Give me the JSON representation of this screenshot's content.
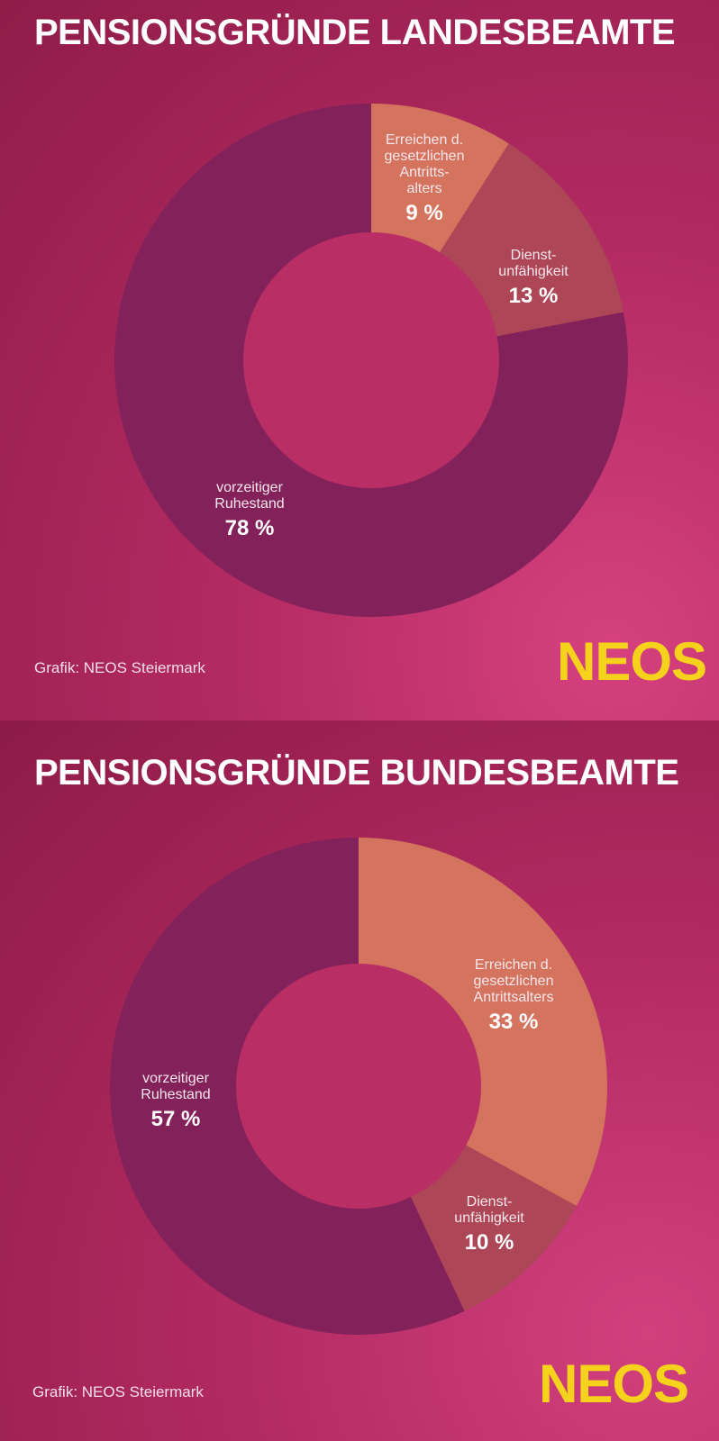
{
  "chart_data": [
    {
      "type": "pie",
      "title": "PENSIONSGRÜNDE LANDESBEAMTE",
      "slices": [
        {
          "label": "Erreichen d. gesetzlichen Antritts- alters",
          "label_lines": [
            "Erreichen d.",
            "gesetzlichen",
            "Antritts-",
            "alters"
          ],
          "value": 9,
          "value_label": "9 %",
          "color": "#d4735e"
        },
        {
          "label": "Dienst- unfähigkeit",
          "label_lines": [
            "Dienst-",
            "unfähigkeit"
          ],
          "value": 13,
          "value_label": "13 %",
          "color": "#ad4656"
        },
        {
          "label": "vorzeitiger Ruhestand",
          "label_lines": [
            "vorzeitiger",
            "Ruhestand"
          ],
          "value": 78,
          "value_label": "78 %",
          "color": "#82215a"
        }
      ],
      "inner_color": "#ba2e66",
      "credit": "Grafik: NEOS Steiermark",
      "logo": "NEOS"
    },
    {
      "type": "pie",
      "title": "PENSIONSGRÜNDE BUNDESBEAMTE",
      "slices": [
        {
          "label": "Erreichen d. gesetzlichen Antrittsalters",
          "label_lines": [
            "Erreichen d.",
            "gesetzlichen",
            "Antrittsalters"
          ],
          "value": 33,
          "value_label": "33 %",
          "color": "#d4735e"
        },
        {
          "label": "Dienst- unfähigkeit",
          "label_lines": [
            "Dienst-",
            "unfähigkeit"
          ],
          "value": 10,
          "value_label": "10 %",
          "color": "#ad4656"
        },
        {
          "label": "vorzeitiger Ruhestand",
          "label_lines": [
            "vorzeitiger",
            "Ruhestand"
          ],
          "value": 57,
          "value_label": "57 %",
          "color": "#82215a"
        }
      ],
      "inner_color": "#ba2e66",
      "credit": "Grafik: NEOS Steiermark",
      "logo": "NEOS"
    }
  ]
}
